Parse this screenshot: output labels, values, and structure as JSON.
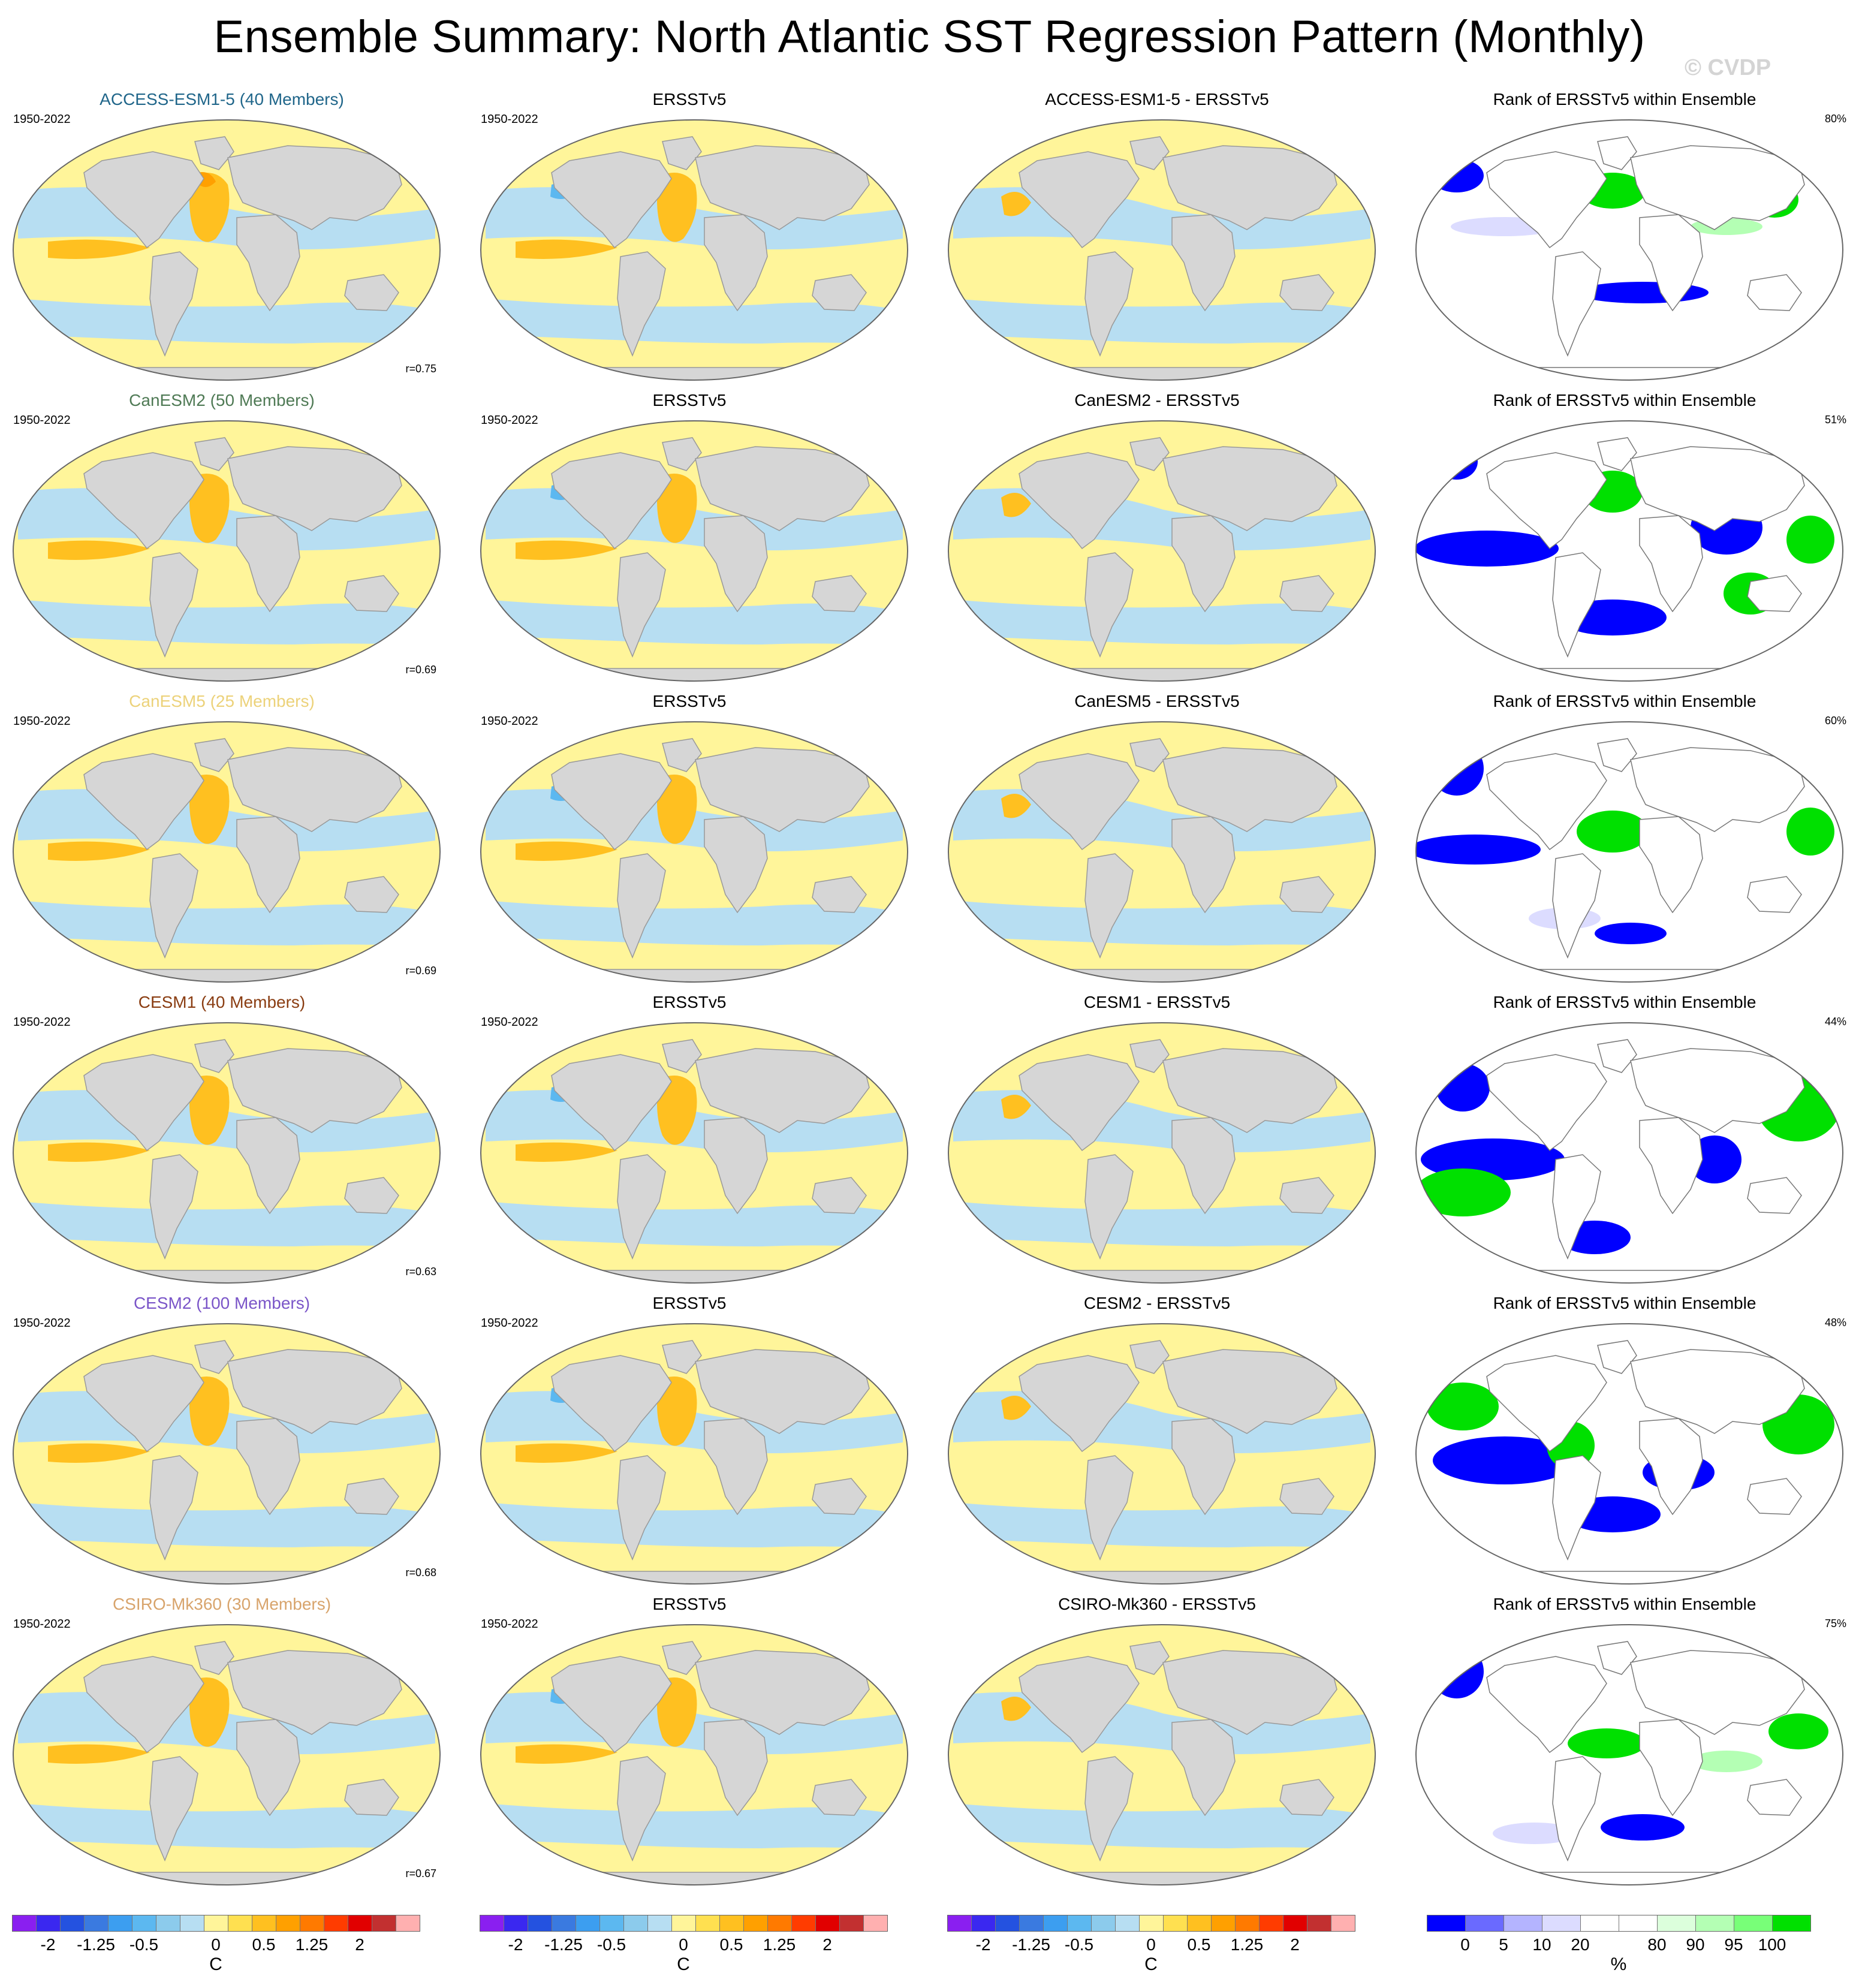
{
  "title": "Ensemble Summary: North Atlantic SST Regression Pattern (Monthly)",
  "copyright": "© CVDP",
  "obs_name": "ERSSTv5",
  "rank_title": "Rank of ERSSTv5 within Ensemble",
  "rows": [
    {
      "model_title": "ACCESS-ESM1-5 (40 Members)",
      "model_color": "#20668a",
      "period": "1950-2022",
      "corr": "r=0.75",
      "obs_title": "ERSSTv5",
      "obs_period": "1950-2022",
      "diff_title": "ACCESS-ESM1-5 - ERSSTv5",
      "rank_title": "Rank of ERSSTv5 within Ensemble",
      "rank_pct": "80%"
    },
    {
      "model_title": "CanESM2 (50 Members)",
      "model_color": "#4f7a55",
      "period": "1950-2022",
      "corr": "r=0.69",
      "obs_title": "ERSSTv5",
      "obs_period": "1950-2022",
      "diff_title": "CanESM2 - ERSSTv5",
      "rank_title": "Rank of ERSSTv5 within Ensemble",
      "rank_pct": "51%"
    },
    {
      "model_title": "CanESM5 (25 Members)",
      "model_color": "#ecd27a",
      "period": "1950-2022",
      "corr": "r=0.69",
      "obs_title": "ERSSTv5",
      "obs_period": "1950-2022",
      "diff_title": "CanESM5 - ERSSTv5",
      "rank_title": "Rank of ERSSTv5 within Ensemble",
      "rank_pct": "60%"
    },
    {
      "model_title": "CESM1 (40 Members)",
      "model_color": "#8a3d12",
      "period": "1950-2022",
      "corr": "r=0.63",
      "obs_title": "ERSSTv5",
      "obs_period": "1950-2022",
      "diff_title": "CESM1 - ERSSTv5",
      "rank_title": "Rank of ERSSTv5 within Ensemble",
      "rank_pct": "44%"
    },
    {
      "model_title": "CESM2 (100 Members)",
      "model_color": "#7a55c8",
      "period": "1950-2022",
      "corr": "r=0.68",
      "obs_title": "ERSSTv5",
      "obs_period": "1950-2022",
      "diff_title": "CESM2 - ERSSTv5",
      "rank_title": "Rank of ERSSTv5 within Ensemble",
      "rank_pct": "48%"
    },
    {
      "model_title": "CSIRO-Mk360 (30 Members)",
      "model_color": "#d8a46c",
      "period": "1950-2022",
      "corr": "r=0.67",
      "obs_title": "ERSSTv5",
      "obs_period": "1950-2022",
      "diff_title": "CSIRO-Mk360 - ERSSTv5",
      "rank_title": "Rank of ERSSTv5 within Ensemble",
      "rank_pct": "75%"
    }
  ],
  "sst_colorbar": {
    "colors": [
      "#8a1ff0",
      "#3a28f0",
      "#2452e0",
      "#3a7ae0",
      "#3c9ef0",
      "#5cb8f0",
      "#8ccbec",
      "#b7def2",
      "#fff59a",
      "#ffe050",
      "#ffc020",
      "#ffa000",
      "#ff7a00",
      "#ff3c00",
      "#e10000",
      "#c23030",
      "#ffb0b0"
    ],
    "ticks": [
      "-2",
      "-1.25",
      "-0.5",
      "0",
      "0.5",
      "1.25",
      "2"
    ],
    "unit": "C"
  },
  "rank_colorbar": {
    "colors": [
      "#0000ff",
      "#6a6aff",
      "#b4b4ff",
      "#dcdcff",
      "#ffffff",
      "#ffffff",
      "#dcffdc",
      "#b4ffb4",
      "#78ff78",
      "#00e000"
    ],
    "ticks": [
      "0",
      "5",
      "10",
      "20",
      "80",
      "90",
      "95",
      "100"
    ],
    "unit": "%"
  }
}
